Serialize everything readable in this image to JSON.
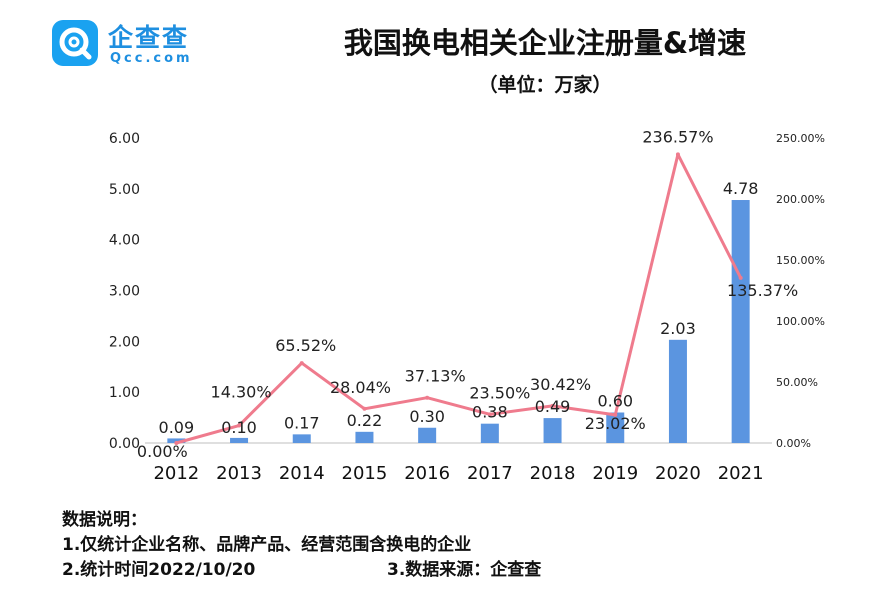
{
  "logo": {
    "name_cn": "企查查",
    "name_en": "Qcc.com",
    "icon": "qcc-logo-icon"
  },
  "title": "我国换电相关企业注册量&增速",
  "subtitle": "（单位：万家）",
  "notes": {
    "heading": "数据说明：",
    "line1": "1.仅统计企业名称、品牌产品、经营范围含换电的企业",
    "line2": "2.统计时间2022/10/20",
    "line3": "3.数据来源：企查查"
  },
  "colors": {
    "bar": "#5b95e0",
    "line": "#ef7b8d",
    "brand": "#1aa2f0"
  },
  "chart_data": {
    "type": "bar",
    "categories": [
      "2012",
      "2013",
      "2014",
      "2015",
      "2016",
      "2017",
      "2018",
      "2019",
      "2020",
      "2021"
    ],
    "series": [
      {
        "type": "bar",
        "axis": "left",
        "values": [
          0.09,
          0.1,
          0.17,
          0.22,
          0.3,
          0.38,
          0.49,
          0.6,
          2.03,
          4.78
        ],
        "labels": [
          "0.09",
          "0.10",
          "0.17",
          "0.22",
          "0.30",
          "0.38",
          "0.49",
          "0.60",
          "2.03",
          "4.78"
        ]
      },
      {
        "type": "line",
        "axis": "right",
        "values": [
          0.0,
          14.3,
          65.52,
          28.04,
          37.13,
          23.5,
          30.42,
          23.02,
          236.57,
          135.37
        ],
        "labels": [
          "0.00%",
          "14.30%",
          "65.52%",
          "28.04%",
          "37.13%",
          "23.50%",
          "30.42%",
          "23.02%",
          "236.57%",
          "135.37%"
        ]
      }
    ],
    "y_left": {
      "min": 0,
      "max": 6,
      "ticks": [
        "0.00",
        "1.00",
        "2.00",
        "3.00",
        "4.00",
        "5.00",
        "6.00"
      ]
    },
    "y_right": {
      "min": 0,
      "max": 250,
      "ticks": [
        "0.00%",
        "50.00%",
        "100.00%",
        "150.00%",
        "200.00%",
        "250.00%"
      ]
    },
    "grid": false,
    "legend": "none"
  }
}
